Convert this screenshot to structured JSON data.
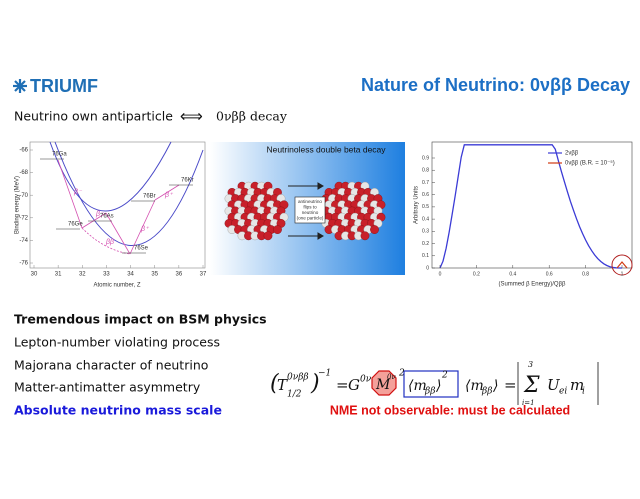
{
  "header": {
    "logo": "TRIUMF",
    "title": "Nature of Neutrino: 0νββ Decay"
  },
  "subtitle": {
    "left": "Neutrino own antiparticle",
    "arrow": "⟺",
    "right": "0νββ decay"
  },
  "figures": {
    "binding": {
      "ylabel": "Binding energy (MeV)",
      "xlabel": "Atomic number, Z",
      "yticks": [
        -66,
        -68,
        -70,
        -72,
        -74,
        -76
      ],
      "xticks": [
        30,
        31,
        32,
        33,
        34,
        35,
        36,
        37
      ],
      "nuclides": [
        "76Ga",
        "76As",
        "76Ge",
        "76Se",
        "76Br",
        "76Kr"
      ],
      "decays": [
        "β⁻",
        "β⁻",
        "ββ",
        "β⁺",
        "β⁺"
      ]
    },
    "image": {
      "title": "Neutrinoless double beta decay",
      "caption": [
        "antineutrino",
        "flips to",
        "neutrino",
        "(one particle)"
      ]
    },
    "spectrum": {
      "ylabel": "Arbitrary Units",
      "xlabel": "(Summed β Energy)/Qββ",
      "yticks": [
        0,
        0.1,
        0.2,
        0.3,
        0.4,
        0.5,
        0.6,
        0.7,
        0.8,
        0.9
      ],
      "xticks": [
        0,
        0.2,
        0.4,
        0.6,
        0.8,
        1
      ],
      "legend": [
        "2νββ",
        "0νββ (B.R. = 10⁻⁵)"
      ]
    }
  },
  "bullets": {
    "heading": "Tremendous impact on BSM physics",
    "items": [
      "Lepton-number violating process",
      "Majorana character of neutrino",
      "Matter-antimatter asymmetry"
    ],
    "highlight": "Absolute neutrino mass scale"
  },
  "formula": {
    "parts": [
      "(",
      "T",
      "0νββ",
      "1/2",
      ")",
      "−1",
      "=",
      "G",
      "0ν",
      "M",
      "0ν",
      "2",
      "⟨m",
      "ββ",
      "⟩",
      "2",
      "⟨m",
      "ββ",
      "⟩",
      "=",
      "Σ",
      "3",
      "i=1",
      "U",
      "ei",
      "m",
      "i"
    ]
  },
  "note": "NME not observable: must be calculated"
}
